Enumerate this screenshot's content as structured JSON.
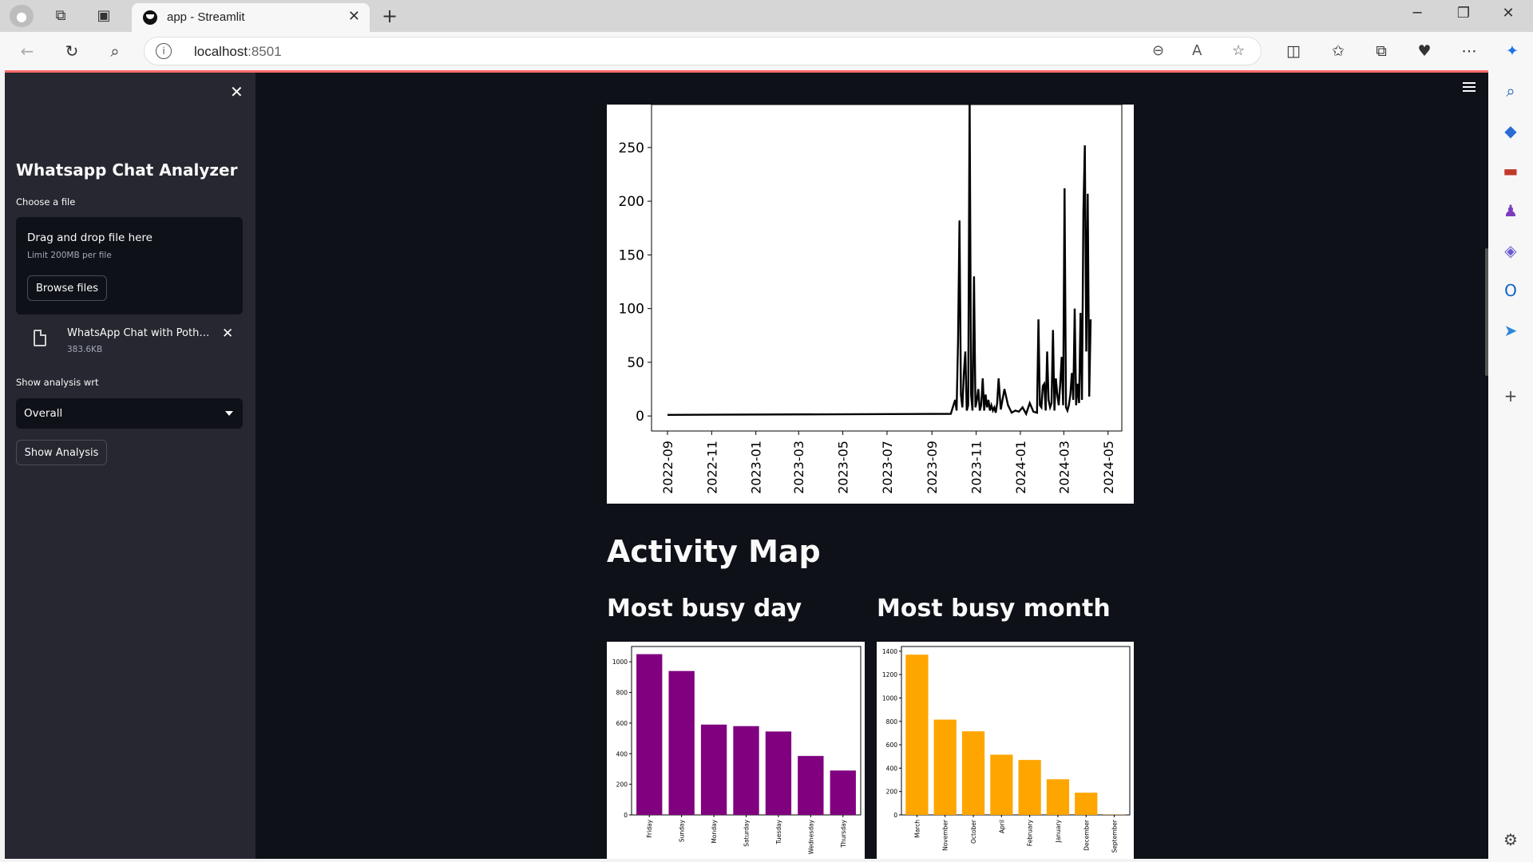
{
  "browser": {
    "tab_title": "app - Streamlit",
    "url_host": "localhost",
    "url_port": ":8501"
  },
  "sidebar": {
    "title": "Whatsapp Chat Analyzer",
    "choose_file_label": "Choose a file",
    "dropzone_main": "Drag and drop file here",
    "dropzone_sub": "Limit 200MB per file",
    "browse_label": "Browse files",
    "file_name": "WhatsApp Chat with Pother...",
    "file_size": "383.6KB",
    "analysis_label": "Show analysis wrt",
    "analysis_selected": "Overall",
    "show_button": "Show Analysis"
  },
  "main": {
    "activity_map_heading": "Activity Map",
    "busy_day_heading": "Most busy day",
    "busy_month_heading": "Most busy month"
  },
  "chart_data": [
    {
      "type": "line",
      "title": "",
      "xlabel": "",
      "ylabel": "",
      "x_ticks": [
        "2022-09",
        "2022-11",
        "2023-01",
        "2023-03",
        "2023-05",
        "2023-07",
        "2023-09",
        "2023-11",
        "2024-01",
        "2024-03",
        "2024-05"
      ],
      "y_ticks": [
        0,
        50,
        100,
        150,
        200,
        250
      ],
      "ylim": [
        -14,
        290
      ],
      "color": "#000000",
      "x": [
        "2022-09-01",
        "2023-09-27",
        "2023-10-03",
        "2023-10-05",
        "2023-10-07",
        "2023-10-09",
        "2023-10-11",
        "2023-10-13",
        "2023-10-15",
        "2023-10-17",
        "2023-10-19",
        "2023-10-21",
        "2023-10-23",
        "2023-10-25",
        "2023-10-27",
        "2023-10-29",
        "2023-10-31",
        "2023-11-02",
        "2023-11-04",
        "2023-11-06",
        "2023-11-08",
        "2023-11-10",
        "2023-11-12",
        "2023-11-14",
        "2023-11-16",
        "2023-11-18",
        "2023-11-20",
        "2023-11-22",
        "2023-11-24",
        "2023-11-26",
        "2023-11-28",
        "2023-11-30",
        "2023-12-02",
        "2023-12-05",
        "2023-12-10",
        "2023-12-15",
        "2023-12-20",
        "2023-12-25",
        "2023-12-30",
        "2024-01-04",
        "2024-01-09",
        "2024-01-14",
        "2024-01-19",
        "2024-01-24",
        "2024-01-26",
        "2024-01-28",
        "2024-01-30",
        "2024-02-01",
        "2024-02-03",
        "2024-02-05",
        "2024-02-07",
        "2024-02-09",
        "2024-02-11",
        "2024-02-13",
        "2024-02-15",
        "2024-02-17",
        "2024-02-19",
        "2024-02-21",
        "2024-02-23",
        "2024-02-25",
        "2024-02-27",
        "2024-02-29",
        "2024-03-02",
        "2024-03-04",
        "2024-03-06",
        "2024-03-08",
        "2024-03-10",
        "2024-03-12",
        "2024-03-14",
        "2024-03-16",
        "2024-03-18",
        "2024-03-20",
        "2024-03-22",
        "2024-03-24",
        "2024-03-26",
        "2024-03-28",
        "2024-03-30",
        "2024-04-01",
        "2024-04-03",
        "2024-04-05",
        "2024-04-07"
      ],
      "values": [
        1,
        2,
        15,
        5,
        70,
        182,
        20,
        8,
        40,
        60,
        5,
        10,
        300,
        20,
        5,
        130,
        8,
        15,
        25,
        5,
        10,
        35,
        5,
        20,
        8,
        15,
        5,
        10,
        5,
        8,
        3,
        12,
        35,
        6,
        25,
        10,
        3,
        5,
        4,
        8,
        2,
        12,
        4,
        3,
        90,
        10,
        8,
        28,
        30,
        5,
        60,
        15,
        8,
        12,
        80,
        5,
        35,
        20,
        10,
        30,
        55,
        10,
        212,
        8,
        5,
        10,
        20,
        40,
        15,
        100,
        10,
        30,
        12,
        96,
        15,
        190,
        252,
        60,
        207,
        18,
        90
      ]
    },
    {
      "type": "bar",
      "title": "",
      "categories": [
        "Friday",
        "Sunday",
        "Monday",
        "Saturday",
        "Tuesday",
        "Wednesday",
        "Thursday"
      ],
      "values": [
        1050,
        940,
        590,
        580,
        545,
        385,
        290
      ],
      "y_ticks": [
        0,
        200,
        400,
        600,
        800,
        1000
      ],
      "ylim": [
        0,
        1100
      ],
      "color": "#800080"
    },
    {
      "type": "bar",
      "title": "",
      "categories": [
        "March",
        "November",
        "October",
        "April",
        "February",
        "January",
        "December",
        "September"
      ],
      "values": [
        1370,
        815,
        715,
        515,
        470,
        305,
        190,
        2
      ],
      "y_ticks": [
        0,
        200,
        400,
        600,
        800,
        1000,
        1200,
        1400
      ],
      "ylim": [
        0,
        1440
      ],
      "color": "#ffa500"
    }
  ]
}
